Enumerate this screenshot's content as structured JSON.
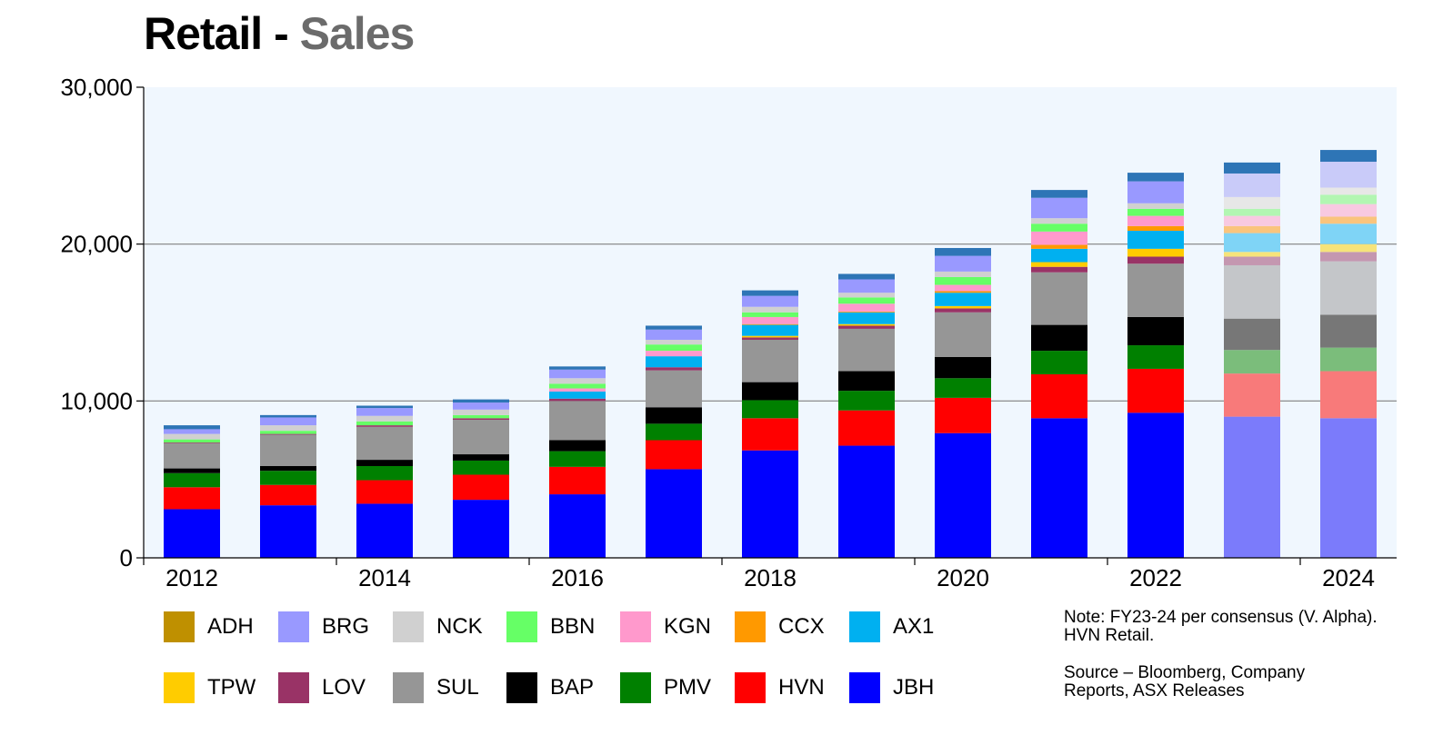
{
  "title": {
    "main": "Retail",
    "separator": "-",
    "sub": "Sales"
  },
  "notes": {
    "line1": "Note: FY23-24 per consensus (V. Alpha).",
    "line2": "HVN Retail.",
    "source1": "Source – Bloomberg, Company",
    "source2": "Reports, ASX Releases"
  },
  "chart_data": {
    "type": "bar",
    "stacked": true,
    "categories": [
      "2012",
      "2013",
      "2014",
      "2015",
      "2016",
      "2017",
      "2018",
      "2019",
      "2020",
      "2021",
      "2022",
      "2023",
      "2024"
    ],
    "x_tick_labels": [
      "2012",
      "2014",
      "2016",
      "2018",
      "2020",
      "2022",
      "2024"
    ],
    "y_tick_labels": [
      "0",
      "10,000",
      "20,000",
      "30,000"
    ],
    "y_ticks": [
      0,
      10000,
      20000,
      30000
    ],
    "ylim": [
      0,
      30000
    ],
    "grid": true,
    "plot_background": "#f0f7fe",
    "legend_position": "bottom",
    "forecast_categories": [
      "2023",
      "2024"
    ],
    "series": [
      {
        "name": "JBH",
        "color": "#0000ff",
        "forecast_color": "#7b7bfb",
        "values": [
          3100,
          3350,
          3450,
          3700,
          4050,
          5650,
          6850,
          7150,
          7950,
          8900,
          9250,
          9000,
          8900
        ]
      },
      {
        "name": "HVN",
        "color": "#ff0000",
        "forecast_color": "#f87a7a",
        "values": [
          1400,
          1300,
          1500,
          1600,
          1750,
          1850,
          2050,
          2250,
          2250,
          2800,
          2800,
          2750,
          3000
        ]
      },
      {
        "name": "PMV",
        "color": "#008000",
        "forecast_color": "#7bbd7b",
        "values": [
          900,
          900,
          900,
          900,
          1000,
          1050,
          1150,
          1250,
          1250,
          1500,
          1500,
          1500,
          1500
        ]
      },
      {
        "name": "BAP",
        "color": "#000000",
        "forecast_color": "#777777",
        "values": [
          300,
          300,
          400,
          400,
          700,
          1050,
          1150,
          1250,
          1350,
          1650,
          1800,
          2000,
          2100
        ]
      },
      {
        "name": "SUL",
        "color": "#969696",
        "forecast_color": "#c4c6c9",
        "values": [
          1600,
          2000,
          2100,
          2200,
          2500,
          2350,
          2700,
          2700,
          2850,
          3350,
          3400,
          3400,
          3400
        ]
      },
      {
        "name": "LOV",
        "color": "#993366",
        "forecast_color": "#c497b0",
        "values": [
          50,
          50,
          100,
          100,
          150,
          200,
          150,
          200,
          250,
          350,
          450,
          550,
          600
        ]
      },
      {
        "name": "TPW",
        "color": "#ffcc00",
        "forecast_color": "#f6e37a",
        "values": [
          0,
          0,
          0,
          0,
          0,
          0,
          100,
          100,
          150,
          300,
          500,
          300,
          500
        ]
      },
      {
        "name": "AX1",
        "color": "#00b0f0",
        "forecast_color": "#7fd4f6",
        "values": [
          0,
          0,
          0,
          0,
          450,
          700,
          700,
          750,
          850,
          850,
          1150,
          1200,
          1300
        ]
      },
      {
        "name": "CCX",
        "color": "#ff9900",
        "forecast_color": "#fac47d",
        "values": [
          0,
          0,
          0,
          0,
          0,
          0,
          50,
          50,
          100,
          250,
          300,
          450,
          450
        ]
      },
      {
        "name": "KGN",
        "color": "#ff99cc",
        "forecast_color": "#f8c9e1",
        "values": [
          0,
          0,
          0,
          0,
          200,
          350,
          450,
          500,
          400,
          850,
          650,
          650,
          800
        ]
      },
      {
        "name": "BBN",
        "color": "#66ff66",
        "forecast_color": "#b2f6b2",
        "values": [
          200,
          200,
          250,
          200,
          300,
          400,
          300,
          400,
          500,
          500,
          450,
          450,
          600
        ]
      },
      {
        "name": "NCK",
        "color": "#d0d0d0",
        "forecast_color": "#e7e7e7",
        "values": [
          350,
          350,
          350,
          350,
          350,
          300,
          350,
          300,
          350,
          350,
          350,
          750,
          450
        ]
      },
      {
        "name": "BRG",
        "color": "#9999ff",
        "forecast_color": "#c9cbf9",
        "values": [
          300,
          500,
          500,
          450,
          550,
          650,
          700,
          850,
          1000,
          1300,
          1400,
          1500,
          1650
        ]
      },
      {
        "name": "ADH",
        "color": "#bf9000",
        "forecast_color": "#dcc579",
        "values": [
          0,
          0,
          0,
          0,
          0,
          0,
          0,
          0,
          0,
          0,
          0,
          0,
          0
        ]
      },
      {
        "name": "",
        "color": "#2e75b6",
        "forecast_color": "#2e75b6",
        "values": [
          250,
          150,
          150,
          200,
          200,
          250,
          350,
          350,
          500,
          500,
          550,
          700,
          750
        ]
      }
    ],
    "legend": {
      "row1": [
        "ADH",
        "BRG",
        "NCK",
        "BBN",
        "KGN",
        "CCX",
        "AX1"
      ],
      "row2": [
        "TPW",
        "LOV",
        "SUL",
        "BAP",
        "PMV",
        "HVN",
        "JBH"
      ]
    }
  }
}
